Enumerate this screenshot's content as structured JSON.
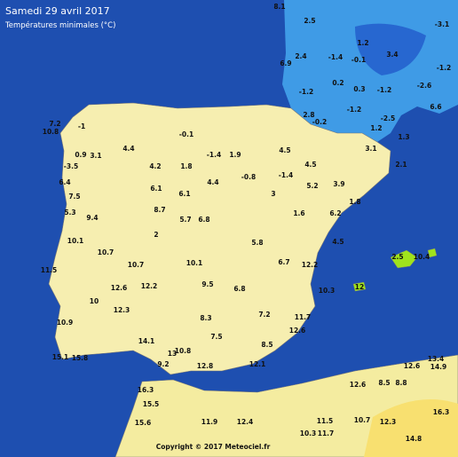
{
  "header": {
    "title": "Samedi 29 avril 2017",
    "subtitle": "Températures minimales (°C)"
  },
  "stations": [
    "8.1",
    "2.5",
    "1.2",
    "-3.1",
    "2.4",
    "-1.4",
    "-0.1",
    "3.4",
    "-1.2",
    "6.9",
    "-1.2",
    "0.2",
    "0.3",
    "-1.2",
    "-2.6",
    "6.6",
    "2.8",
    "-0.2",
    "-1.2",
    "-2.5",
    "1.2",
    "1.3",
    "3.1",
    "2.1",
    "7.2",
    "10.8",
    "-1",
    "4.4",
    "-0.1",
    "-1.4",
    "1.9",
    "-3.5",
    "0.9",
    "4.2",
    "1.8",
    "3.1",
    "4.5",
    "4.5",
    "-1.4",
    "6.4",
    "6.1",
    "4.4",
    "3",
    "5.2",
    "3.9",
    "7.5",
    "6.1",
    "-0.8",
    "1.8",
    "5.3",
    "9.4",
    "8.7",
    "5.7",
    "6.8",
    "1.6",
    "6.2",
    "10.1",
    "2",
    "5.8",
    "4.5",
    "10.7",
    "11.5",
    "10.7",
    "10.1",
    "6.7",
    "12.2",
    "12.6",
    "12.2",
    "9.5",
    "6.8",
    "10.3",
    "2.5",
    "10.4",
    "12",
    "10",
    "12.3",
    "8.3",
    "7.2",
    "11.7",
    "10.9",
    "7.5",
    "8.5",
    "12.6",
    "14.1",
    "10.8",
    "15.1",
    "15.8",
    "13",
    "9.2",
    "12.8",
    "12.1",
    "13.4",
    "12.6",
    "12.6",
    "8.5",
    "8.8",
    "14.9",
    "16.3",
    "15.5",
    "11.9",
    "12.4",
    "11.5",
    "10.7",
    "12.3",
    "15.6",
    "10.3",
    "11.7",
    "14.8",
    "16.3"
  ],
  "footer": "Copyright © 2017 Meteociel.fr"
}
